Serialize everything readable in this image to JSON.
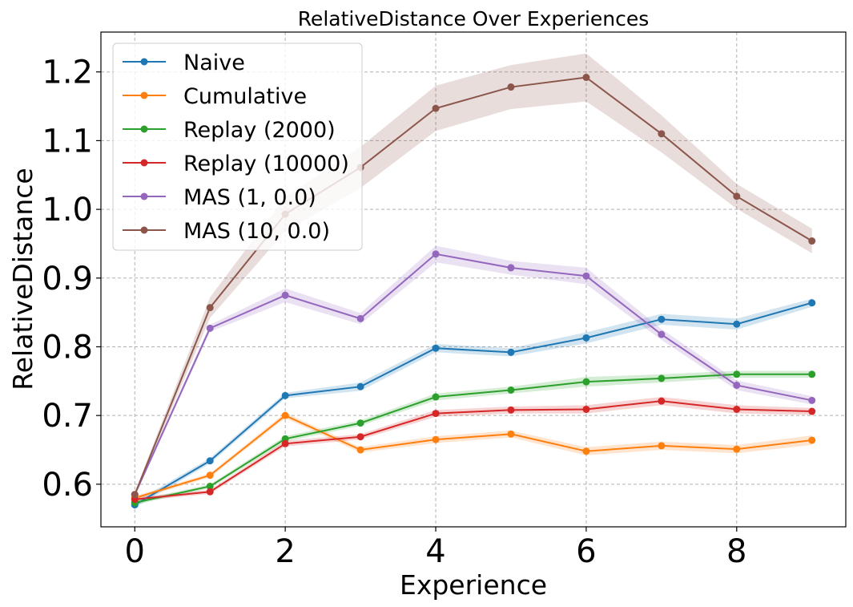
{
  "chart_data": {
    "type": "line",
    "title": "RelativeDistance Over Experiences",
    "xlabel": "Experience",
    "ylabel": "RelativeDistance",
    "xlim": [
      -0.45,
      9.45
    ],
    "ylim": [
      0.538,
      1.258
    ],
    "xticks": [
      0,
      2,
      4,
      6,
      8
    ],
    "xtick_labels": [
      "0",
      "2",
      "4",
      "6",
      "8"
    ],
    "yticks": [
      0.6,
      0.7,
      0.8,
      0.9,
      1.0,
      1.1,
      1.2
    ],
    "ytick_labels": [
      "0.6",
      "0.7",
      "0.8",
      "0.9",
      "1.0",
      "1.1",
      "1.2"
    ],
    "grid": true,
    "legend_position": "upper-left",
    "x": [
      0,
      1,
      2,
      3,
      4,
      5,
      6,
      7,
      8,
      9
    ],
    "series": [
      {
        "name": "Naive",
        "color": "#1f77b4",
        "values": [
          0.57,
          0.634,
          0.729,
          0.742,
          0.798,
          0.792,
          0.813,
          0.84,
          0.833,
          0.864
        ],
        "band": [
          0.004,
          0.004,
          0.004,
          0.006,
          0.006,
          0.006,
          0.008,
          0.008,
          0.008,
          0.006
        ]
      },
      {
        "name": "Cumulative",
        "color": "#ff7f0e",
        "values": [
          0.58,
          0.613,
          0.7,
          0.65,
          0.665,
          0.673,
          0.648,
          0.656,
          0.651,
          0.664
        ],
        "band": [
          0.003,
          0.003,
          0.004,
          0.004,
          0.005,
          0.005,
          0.006,
          0.006,
          0.006,
          0.007
        ]
      },
      {
        "name": "Replay (2000)",
        "color": "#2ca02c",
        "values": [
          0.573,
          0.597,
          0.666,
          0.689,
          0.727,
          0.737,
          0.749,
          0.754,
          0.76,
          0.76
        ],
        "band": [
          0.003,
          0.003,
          0.004,
          0.004,
          0.005,
          0.005,
          0.007,
          0.006,
          0.005,
          0.005
        ]
      },
      {
        "name": "Replay (10000)",
        "color": "#d62728",
        "values": [
          0.578,
          0.589,
          0.659,
          0.669,
          0.703,
          0.708,
          0.709,
          0.721,
          0.709,
          0.706
        ],
        "band": [
          0.003,
          0.003,
          0.004,
          0.004,
          0.005,
          0.005,
          0.006,
          0.006,
          0.006,
          0.005
        ]
      },
      {
        "name": "MAS (1, 0.0)",
        "color": "#9467bd",
        "values": [
          0.585,
          0.827,
          0.875,
          0.841,
          0.935,
          0.915,
          0.903,
          0.818,
          0.744,
          0.722
        ],
        "band": [
          0.003,
          0.005,
          0.01,
          0.008,
          0.012,
          0.01,
          0.012,
          0.008,
          0.007,
          0.006
        ]
      },
      {
        "name": "MAS (10, 0.0)",
        "color": "#8c564b",
        "values": [
          0.585,
          0.857,
          0.993,
          1.061,
          1.147,
          1.178,
          1.192,
          1.11,
          1.019,
          0.954
        ],
        "band": [
          0.003,
          0.015,
          0.025,
          0.03,
          0.033,
          0.032,
          0.035,
          0.027,
          0.018,
          0.018
        ]
      }
    ]
  }
}
